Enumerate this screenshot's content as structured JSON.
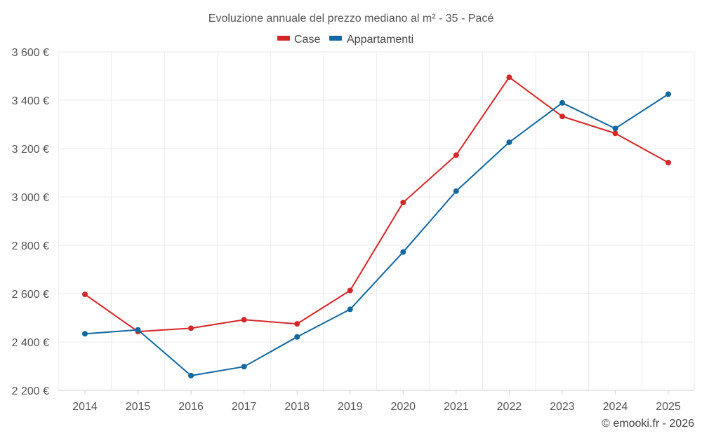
{
  "colors": {
    "case": "#d62728",
    "appartamenti": "#1068a0"
  },
  "chart_data": {
    "type": "line",
    "title": "Evoluzione annuale del prezzo mediano al m² - 35 - Pacé",
    "xlabel": "",
    "ylabel": "",
    "categories": [
      "2014",
      "2015",
      "2016",
      "2017",
      "2018",
      "2019",
      "2020",
      "2021",
      "2022",
      "2023",
      "2024",
      "2025"
    ],
    "ylim": [
      2200,
      3600
    ],
    "yticks": [
      2200,
      2400,
      2600,
      2800,
      3000,
      3200,
      3400,
      3600
    ],
    "ytick_labels": [
      "2 200 €",
      "2 400 €",
      "2 600 €",
      "2 800 €",
      "3 000 €",
      "3 200 €",
      "3 400 €",
      "3 600 €"
    ],
    "grid": true,
    "legend_position": "top-center",
    "series": [
      {
        "name": "Case",
        "color_key": "case",
        "values": [
          2597,
          2443,
          2457,
          2492,
          2475,
          2613,
          2977,
          3173,
          3495,
          3333,
          3263,
          3142
        ]
      },
      {
        "name": "Appartamenti",
        "color_key": "appartamenti",
        "values": [
          2434,
          2450,
          2261,
          2298,
          2421,
          2535,
          2772,
          3024,
          3226,
          3389,
          3283,
          3425
        ]
      }
    ],
    "credit": "© emooki.fr - 2026"
  }
}
